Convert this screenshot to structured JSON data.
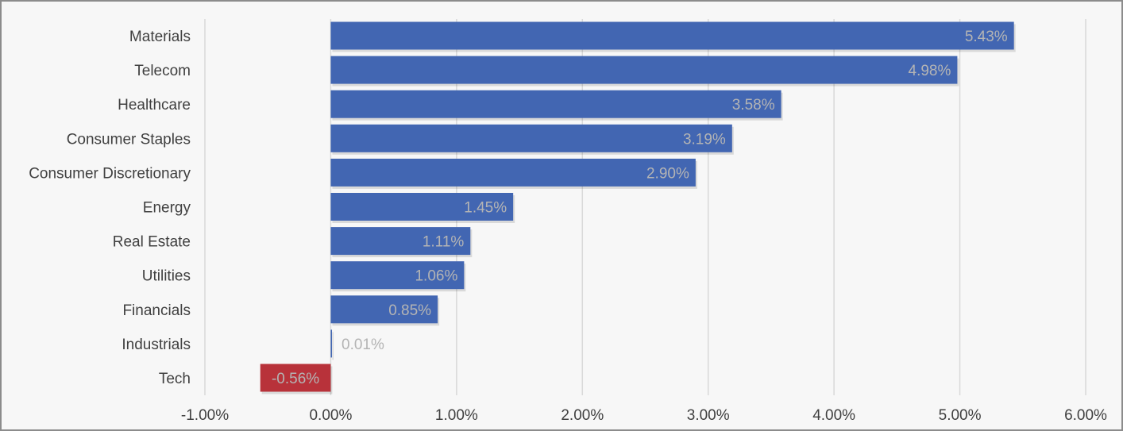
{
  "chart_data": {
    "type": "bar",
    "orientation": "horizontal",
    "categories": [
      "Materials",
      "Telecom",
      "Healthcare",
      "Consumer Staples",
      "Consumer Discretionary",
      "Energy",
      "Real Estate",
      "Utilities",
      "Financials",
      "Industrials",
      "Tech"
    ],
    "values": [
      5.43,
      4.98,
      3.58,
      3.19,
      2.9,
      1.45,
      1.11,
      1.06,
      0.85,
      0.01,
      -0.56
    ],
    "data_labels": [
      "5.43%",
      "4.98%",
      "3.58%",
      "3.19%",
      "2.90%",
      "1.45%",
      "1.11%",
      "1.06%",
      "0.85%",
      "0.01%",
      "-0.56%"
    ],
    "xlim": [
      -1.0,
      6.0
    ],
    "x_ticks": [
      -1,
      0,
      1,
      2,
      3,
      4,
      5,
      6
    ],
    "x_tick_labels": [
      "-1.00%",
      "0.00%",
      "1.00%",
      "2.00%",
      "3.00%",
      "4.00%",
      "5.00%",
      "6.00%"
    ],
    "title": "",
    "xlabel": "",
    "ylabel": "",
    "grid": "vertical",
    "legend": "none",
    "colors": {
      "positive": "#4266b2",
      "negative": "#b8323a",
      "label": "#b4b4b4",
      "text": "#404040",
      "grid": "#d9d9d9",
      "background": "#f7f7f7"
    }
  }
}
